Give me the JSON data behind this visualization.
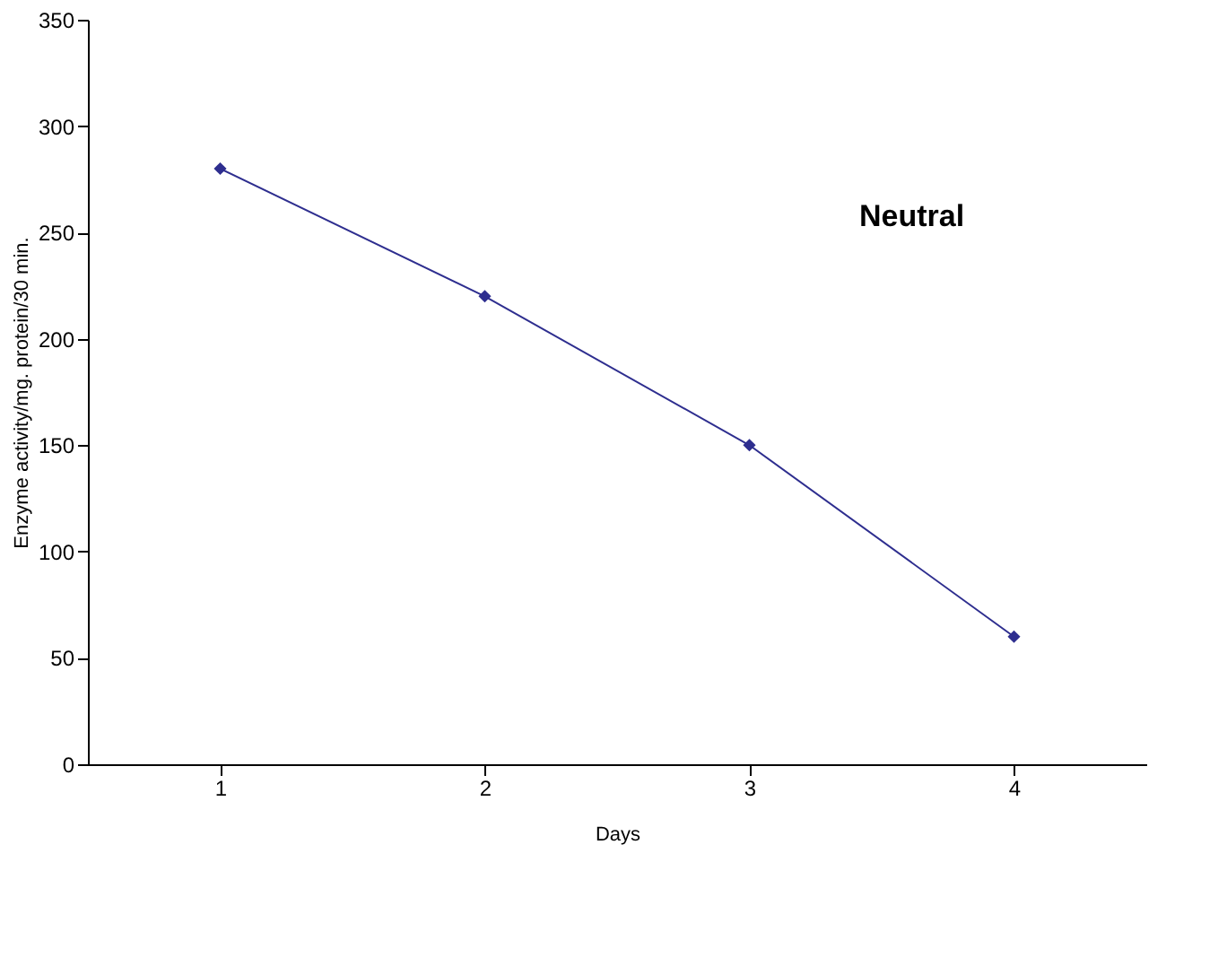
{
  "chart_data": {
    "type": "line",
    "xlabel": "Days",
    "ylabel": "Enzyme activity/mg. protein/30 min.",
    "categories": [
      "1",
      "2",
      "3",
      "4"
    ],
    "series": [
      {
        "color": "#2e2e8f",
        "values": [
          280,
          220,
          150,
          60
        ]
      }
    ],
    "ylim": [
      0,
      350
    ],
    "yticks": [
      0,
      50,
      100,
      150,
      200,
      250,
      300,
      350
    ],
    "annotations": [
      "Neutral"
    ],
    "marker": "diamond",
    "grid": false
  }
}
